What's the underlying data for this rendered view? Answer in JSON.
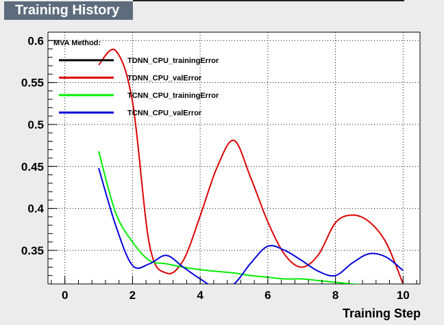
{
  "chart_data": {
    "type": "line",
    "title": "Training History",
    "xlabel": "Training Step",
    "ylabel": "",
    "xlim": [
      -0.5,
      10.5
    ],
    "ylim": [
      0.31,
      0.61
    ],
    "xticks": [
      0,
      2,
      4,
      6,
      8,
      10
    ],
    "yticks": [
      0.35,
      0.4,
      0.45,
      0.5,
      0.55,
      0.6
    ],
    "ytick_labels": [
      "0.35",
      "0.4",
      "0.45",
      "0.5",
      "0.55",
      "0.6"
    ],
    "grid": true,
    "legend": {
      "header": "MVA Method:",
      "placement": "top-left"
    },
    "series": [
      {
        "name": "TDNN_CPU_trainingError",
        "color": "#000000",
        "x": [],
        "y": []
      },
      {
        "name": "TDNN_CPU_valError",
        "color": "#dd0000",
        "x": [
          1.0,
          1.5,
          2.0,
          2.5,
          3.0,
          3.5,
          4.0,
          4.5,
          5.0,
          5.5,
          6.0,
          6.5,
          7.0,
          7.5,
          8.0,
          8.5,
          9.0,
          9.5,
          10.0
        ],
        "y": [
          0.571,
          0.588,
          0.527,
          0.357,
          0.323,
          0.338,
          0.391,
          0.449,
          0.481,
          0.436,
          0.384,
          0.345,
          0.33,
          0.345,
          0.383,
          0.392,
          0.384,
          0.359,
          0.31
        ]
      },
      {
        "name": "TCNN_CPU_trainingError",
        "color": "#00ee00",
        "x": [
          1.0,
          1.5,
          2.0,
          2.5,
          3.0,
          3.5,
          4.0,
          4.5,
          5.0,
          5.5,
          6.0,
          6.5,
          7.0,
          7.5,
          8.0,
          8.5,
          9.0,
          9.5,
          10.0
        ],
        "y": [
          0.468,
          0.395,
          0.36,
          0.338,
          0.334,
          0.33,
          0.327,
          0.325,
          0.323,
          0.32,
          0.318,
          0.316,
          0.316,
          0.314,
          0.312,
          0.31,
          0.309,
          0.308,
          0.308
        ]
      },
      {
        "name": "TCNN_CPU_valError",
        "color": "#0000dd",
        "x": [
          1.0,
          1.5,
          2.0,
          2.5,
          3.0,
          3.5,
          4.0,
          4.5,
          5.0,
          5.5,
          6.0,
          6.5,
          7.0,
          7.5,
          8.0,
          8.5,
          9.0,
          9.5,
          10.0
        ],
        "y": [
          0.448,
          0.38,
          0.332,
          0.334,
          0.344,
          0.33,
          0.316,
          0.305,
          0.31,
          0.335,
          0.355,
          0.35,
          0.338,
          0.325,
          0.32,
          0.335,
          0.346,
          0.342,
          0.326
        ]
      }
    ]
  }
}
